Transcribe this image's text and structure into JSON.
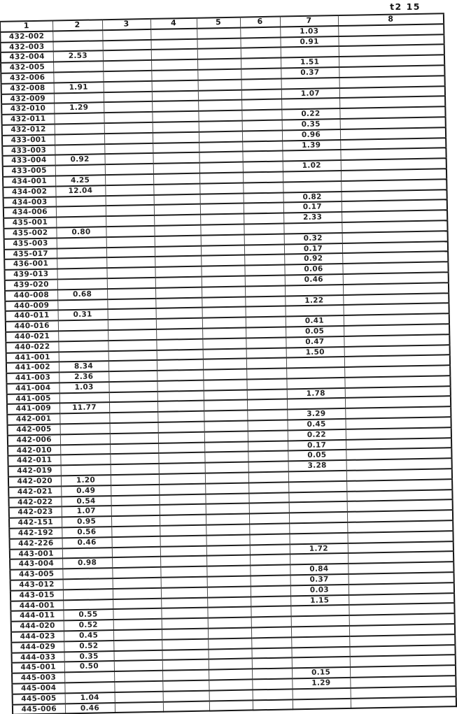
{
  "page_header": "t2 15",
  "table": {
    "column_headers": [
      "1",
      "2",
      "3",
      "4",
      "5",
      "6",
      "7",
      "8"
    ],
    "rows": [
      {
        "code": "432-002",
        "cells": {
          "7": "1.03"
        }
      },
      {
        "code": "432-003",
        "cells": {
          "7": "0.91"
        }
      },
      {
        "code": "432-004",
        "cells": {
          "2": "2.53"
        }
      },
      {
        "code": "432-005",
        "cells": {
          "7": "1.51"
        }
      },
      {
        "code": "432-006",
        "cells": {
          "7": "0.37"
        }
      },
      {
        "code": "432-008",
        "cells": {
          "2": "1.91"
        }
      },
      {
        "code": "432-009",
        "cells": {
          "7": "1.07"
        }
      },
      {
        "code": "432-010",
        "cells": {
          "2": "1.29"
        }
      },
      {
        "code": "432-011",
        "cells": {
          "7": "0.22"
        }
      },
      {
        "code": "432-012",
        "cells": {
          "7": "0.35"
        }
      },
      {
        "code": "433-001",
        "cells": {
          "7": "0.96"
        }
      },
      {
        "code": "433-003",
        "cells": {
          "7": "1.39"
        }
      },
      {
        "code": "433-004",
        "cells": {
          "2": "0.92"
        }
      },
      {
        "code": "433-005",
        "cells": {
          "7": "1.02"
        }
      },
      {
        "code": "434-001",
        "cells": {
          "2": "4.25"
        }
      },
      {
        "code": "434-002",
        "cells": {
          "2": "12.04"
        }
      },
      {
        "code": "434-003",
        "cells": {
          "7": "0.82"
        }
      },
      {
        "code": "434-006",
        "cells": {
          "7": "0.17"
        }
      },
      {
        "code": "435-001",
        "cells": {
          "7": "2.33"
        }
      },
      {
        "code": "435-002",
        "cells": {
          "2": "0.80"
        }
      },
      {
        "code": "435-003",
        "cells": {
          "7": "0.32"
        }
      },
      {
        "code": "435-017",
        "cells": {
          "7": "0.17"
        }
      },
      {
        "code": "436-001",
        "cells": {
          "7": "0.92"
        }
      },
      {
        "code": "439-013",
        "cells": {
          "7": "0.06"
        }
      },
      {
        "code": "439-020",
        "cells": {
          "7": "0.46"
        }
      },
      {
        "code": "440-008",
        "cells": {
          "2": "0.68"
        }
      },
      {
        "code": "440-009",
        "cells": {
          "7": "1.22"
        }
      },
      {
        "code": "440-011",
        "cells": {
          "2": "0.31"
        }
      },
      {
        "code": "440-016",
        "cells": {
          "7": "0.41"
        }
      },
      {
        "code": "440-021",
        "cells": {
          "7": "0.05"
        }
      },
      {
        "code": "440-022",
        "cells": {
          "7": "0.47"
        }
      },
      {
        "code": "441-001",
        "cells": {
          "7": "1.50"
        }
      },
      {
        "code": "441-002",
        "cells": {
          "2": "8.34"
        }
      },
      {
        "code": "441-003",
        "cells": {
          "2": "2.36"
        }
      },
      {
        "code": "441-004",
        "cells": {
          "2": "1.03"
        }
      },
      {
        "code": "441-005",
        "cells": {
          "7": "1.78"
        }
      },
      {
        "code": "441-009",
        "cells": {
          "2": "11.77"
        }
      },
      {
        "code": "442-001",
        "cells": {
          "7": "3.29"
        }
      },
      {
        "code": "442-005",
        "cells": {
          "7": "0.45"
        }
      },
      {
        "code": "442-006",
        "cells": {
          "7": "0.22"
        }
      },
      {
        "code": "442-010",
        "cells": {
          "7": "0.17"
        }
      },
      {
        "code": "442-011",
        "cells": {
          "7": "0.05"
        }
      },
      {
        "code": "442-019",
        "cells": {
          "7": "3.28"
        }
      },
      {
        "code": "442-020",
        "cells": {
          "2": "1.20"
        }
      },
      {
        "code": "442-021",
        "cells": {
          "2": "0.49"
        }
      },
      {
        "code": "442-022",
        "cells": {
          "2": "0.54"
        }
      },
      {
        "code": "442-023",
        "cells": {
          "2": "1.07"
        }
      },
      {
        "code": "442-151",
        "cells": {
          "2": "0.95"
        }
      },
      {
        "code": "442-192",
        "cells": {
          "2": "0.56"
        }
      },
      {
        "code": "442-226",
        "cells": {
          "2": "0.46"
        }
      },
      {
        "code": "443-001",
        "cells": {
          "7": "1.72"
        }
      },
      {
        "code": "443-004",
        "cells": {
          "2": "0.98"
        }
      },
      {
        "code": "443-005",
        "cells": {
          "7": "0.84"
        }
      },
      {
        "code": "443-012",
        "cells": {
          "7": "0.37"
        }
      },
      {
        "code": "443-015",
        "cells": {
          "7": "0.03"
        }
      },
      {
        "code": "444-001",
        "cells": {
          "7": "1.15"
        }
      },
      {
        "code": "444-011",
        "cells": {
          "2": "0.55"
        }
      },
      {
        "code": "444-020",
        "cells": {
          "2": "0.52"
        }
      },
      {
        "code": "444-023",
        "cells": {
          "2": "0.45"
        }
      },
      {
        "code": "444-029",
        "cells": {
          "2": "0.52"
        }
      },
      {
        "code": "444-033",
        "cells": {
          "2": "0.35"
        }
      },
      {
        "code": "445-001",
        "cells": {
          "2": "0.50"
        }
      },
      {
        "code": "445-003",
        "cells": {
          "7": "0.15"
        }
      },
      {
        "code": "445-004",
        "cells": {
          "7": "1.29"
        }
      },
      {
        "code": "445-005",
        "cells": {
          "2": "1.04"
        }
      },
      {
        "code": "445-006",
        "cells": {
          "2": "0.46"
        }
      }
    ]
  }
}
